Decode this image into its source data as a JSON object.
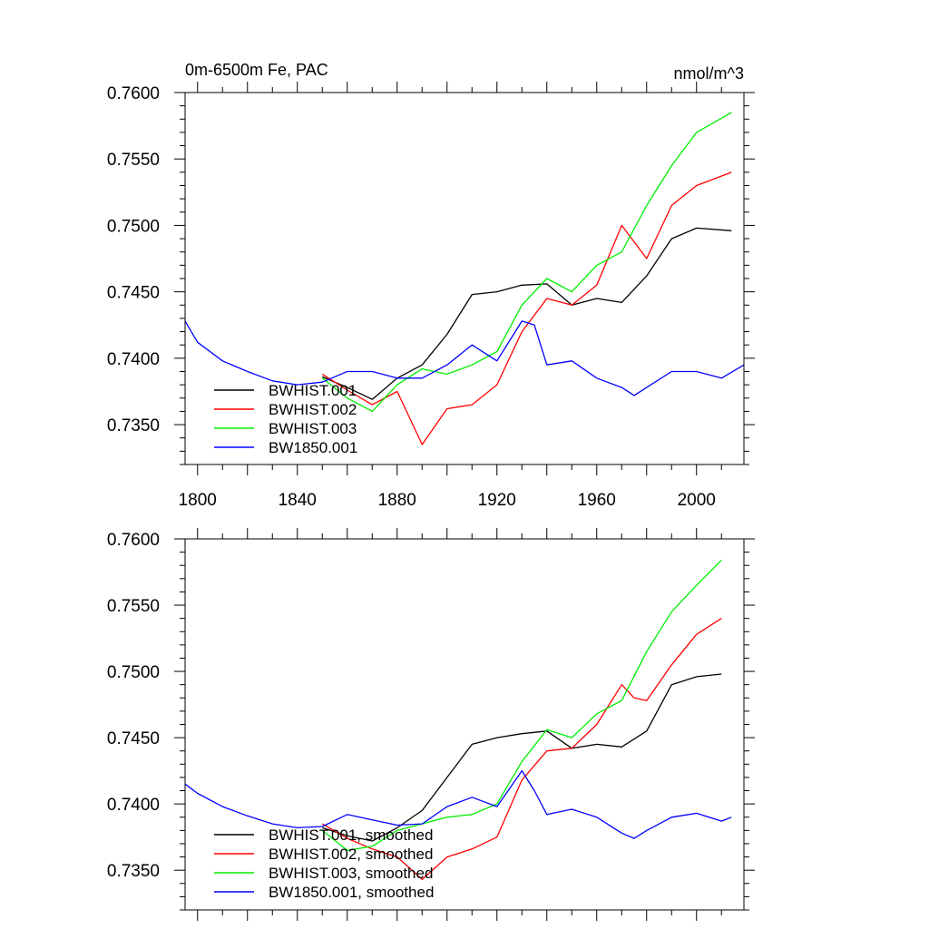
{
  "chart_data": [
    {
      "type": "line",
      "title_left": "0m-6500m Fe, PAC",
      "title_right": "nmol/m^3",
      "xlim": [
        1795,
        2019
      ],
      "ylim": [
        0.732,
        0.76
      ],
      "xticks": [
        "1800",
        "1840",
        "1880",
        "1920",
        "1960",
        "2000"
      ],
      "yticks": [
        "0.7600",
        "0.7550",
        "0.7500",
        "0.7450",
        "0.7400",
        "0.7350"
      ],
      "legend_position": "bottom-left",
      "series": [
        {
          "name": "BWHIST.001",
          "color": "#000000",
          "x": [
            1850,
            1860,
            1870,
            1880,
            1890,
            1900,
            1910,
            1920,
            1930,
            1940,
            1950,
            1960,
            1970,
            1980,
            1990,
            2000,
            2014
          ],
          "y": [
            0.7386,
            0.7378,
            0.7369,
            0.7385,
            0.7395,
            0.7418,
            0.7448,
            0.745,
            0.7455,
            0.7456,
            0.744,
            0.7445,
            0.7442,
            0.7462,
            0.749,
            0.7498,
            0.7496
          ]
        },
        {
          "name": "BWHIST.002",
          "color": "#ff0000",
          "x": [
            1850,
            1860,
            1870,
            1880,
            1890,
            1900,
            1910,
            1920,
            1930,
            1940,
            1950,
            1960,
            1970,
            1980,
            1990,
            2000,
            2014
          ],
          "y": [
            0.7388,
            0.7376,
            0.7365,
            0.7375,
            0.7335,
            0.7362,
            0.7365,
            0.738,
            0.742,
            0.7445,
            0.744,
            0.7455,
            0.75,
            0.7475,
            0.7515,
            0.753,
            0.754
          ]
        },
        {
          "name": "BWHIST.003",
          "color": "#00ee00",
          "x": [
            1850,
            1860,
            1870,
            1880,
            1890,
            1900,
            1910,
            1920,
            1930,
            1940,
            1950,
            1960,
            1970,
            1980,
            1990,
            2000,
            2014
          ],
          "y": [
            0.7385,
            0.737,
            0.736,
            0.738,
            0.7392,
            0.7388,
            0.7395,
            0.7405,
            0.744,
            0.746,
            0.745,
            0.747,
            0.748,
            0.7515,
            0.7545,
            0.757,
            0.7585
          ]
        },
        {
          "name": "BW1850.001",
          "color": "#0000ff",
          "x": [
            1795,
            1800,
            1810,
            1820,
            1830,
            1840,
            1850,
            1860,
            1870,
            1880,
            1890,
            1900,
            1910,
            1920,
            1930,
            1935,
            1940,
            1950,
            1960,
            1970,
            1975,
            1980,
            1990,
            2000,
            2010,
            2019
          ],
          "y": [
            0.7428,
            0.7412,
            0.7398,
            0.739,
            0.7383,
            0.738,
            0.7382,
            0.739,
            0.739,
            0.7385,
            0.7385,
            0.7395,
            0.741,
            0.7398,
            0.7428,
            0.7425,
            0.7395,
            0.7398,
            0.7385,
            0.7378,
            0.7372,
            0.7378,
            0.739,
            0.739,
            0.7385,
            0.7395
          ]
        }
      ]
    },
    {
      "type": "line",
      "xlim": [
        1795,
        2019
      ],
      "ylim": [
        0.732,
        0.76
      ],
      "xticks": [],
      "yticks": [
        "0.7600",
        "0.7550",
        "0.7500",
        "0.7450",
        "0.7400",
        "0.7350"
      ],
      "legend_position": "bottom-left",
      "series": [
        {
          "name": "BWHIST.001, smoothed",
          "color": "#000000",
          "x": [
            1850,
            1860,
            1870,
            1880,
            1890,
            1900,
            1910,
            1920,
            1930,
            1940,
            1950,
            1960,
            1970,
            1980,
            1990,
            2000,
            2010
          ],
          "y": [
            0.7382,
            0.7376,
            0.7372,
            0.7382,
            0.7395,
            0.742,
            0.7445,
            0.745,
            0.7453,
            0.7455,
            0.7442,
            0.7445,
            0.7443,
            0.7455,
            0.749,
            0.7496,
            0.7498
          ]
        },
        {
          "name": "BWHIST.002, smoothed",
          "color": "#ff0000",
          "x": [
            1850,
            1860,
            1870,
            1880,
            1890,
            1900,
            1910,
            1920,
            1930,
            1940,
            1950,
            1960,
            1970,
            1975,
            1980,
            1990,
            2000,
            2010
          ],
          "y": [
            0.7385,
            0.7374,
            0.7366,
            0.736,
            0.7343,
            0.736,
            0.7366,
            0.7375,
            0.7418,
            0.744,
            0.7442,
            0.746,
            0.749,
            0.748,
            0.7478,
            0.7505,
            0.7528,
            0.754
          ]
        },
        {
          "name": "BWHIST.003, smoothed",
          "color": "#00ee00",
          "x": [
            1850,
            1860,
            1870,
            1880,
            1890,
            1900,
            1910,
            1920,
            1930,
            1940,
            1950,
            1960,
            1970,
            1980,
            1990,
            2000,
            2010
          ],
          "y": [
            0.738,
            0.7365,
            0.7368,
            0.738,
            0.7385,
            0.739,
            0.7392,
            0.74,
            0.7432,
            0.7456,
            0.745,
            0.7468,
            0.7478,
            0.7515,
            0.7545,
            0.7565,
            0.7584
          ]
        },
        {
          "name": "BW1850.001, smoothed",
          "color": "#0000ff",
          "x": [
            1795,
            1800,
            1810,
            1820,
            1830,
            1840,
            1850,
            1860,
            1870,
            1880,
            1890,
            1900,
            1910,
            1920,
            1930,
            1935,
            1940,
            1950,
            1960,
            1970,
            1975,
            1980,
            1990,
            2000,
            2010,
            2014
          ],
          "y": [
            0.7415,
            0.7408,
            0.7398,
            0.7391,
            0.7385,
            0.7382,
            0.7383,
            0.7392,
            0.7388,
            0.7384,
            0.7385,
            0.7398,
            0.7405,
            0.7398,
            0.7425,
            0.741,
            0.7392,
            0.7396,
            0.739,
            0.7378,
            0.7374,
            0.738,
            0.739,
            0.7393,
            0.7387,
            0.739
          ]
        }
      ]
    }
  ]
}
